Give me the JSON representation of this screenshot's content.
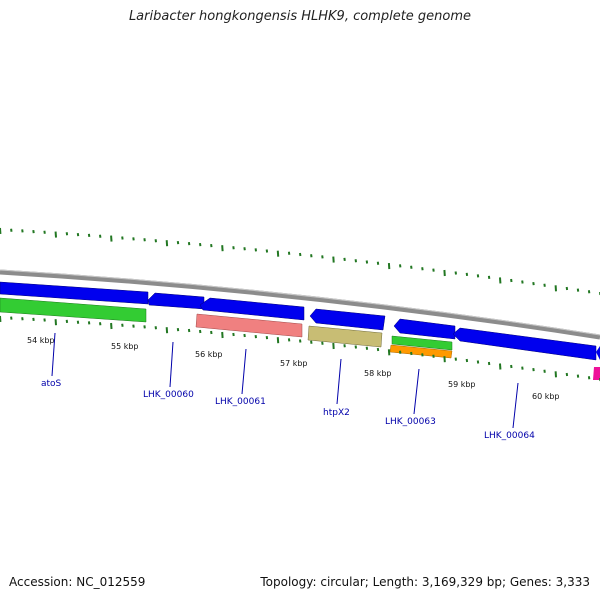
{
  "title": "Laribacter hongkongensis HLHK9, complete genome",
  "footer": {
    "accession": "Accession: NC_012559",
    "summary": "Topology: circular; Length: 3,169,329 bp; Genes: 3,333"
  },
  "ticks": [
    {
      "label": "54 kbp"
    },
    {
      "label": "55 kbp"
    },
    {
      "label": "56 kbp"
    },
    {
      "label": "57 kbp"
    },
    {
      "label": "58 kbp"
    },
    {
      "label": "59 kbp"
    },
    {
      "label": "60 kbp"
    }
  ],
  "genes": [
    {
      "label": "atoS"
    },
    {
      "label": "LHK_00060"
    },
    {
      "label": "LHK_00061"
    },
    {
      "label": "htpX2"
    },
    {
      "label": "LHK_00063"
    },
    {
      "label": "LHK_00064"
    }
  ],
  "colors": {
    "background": "#ffffff",
    "backbone": "#8c8c8c",
    "cds": "#0000ee",
    "green": "#33cc33",
    "salmon": "#f08080",
    "khaki": "#c8bd74",
    "orange": "#ff9900",
    "magenta": "#ee1199",
    "tick": "#227722",
    "label": "#0000aa"
  }
}
